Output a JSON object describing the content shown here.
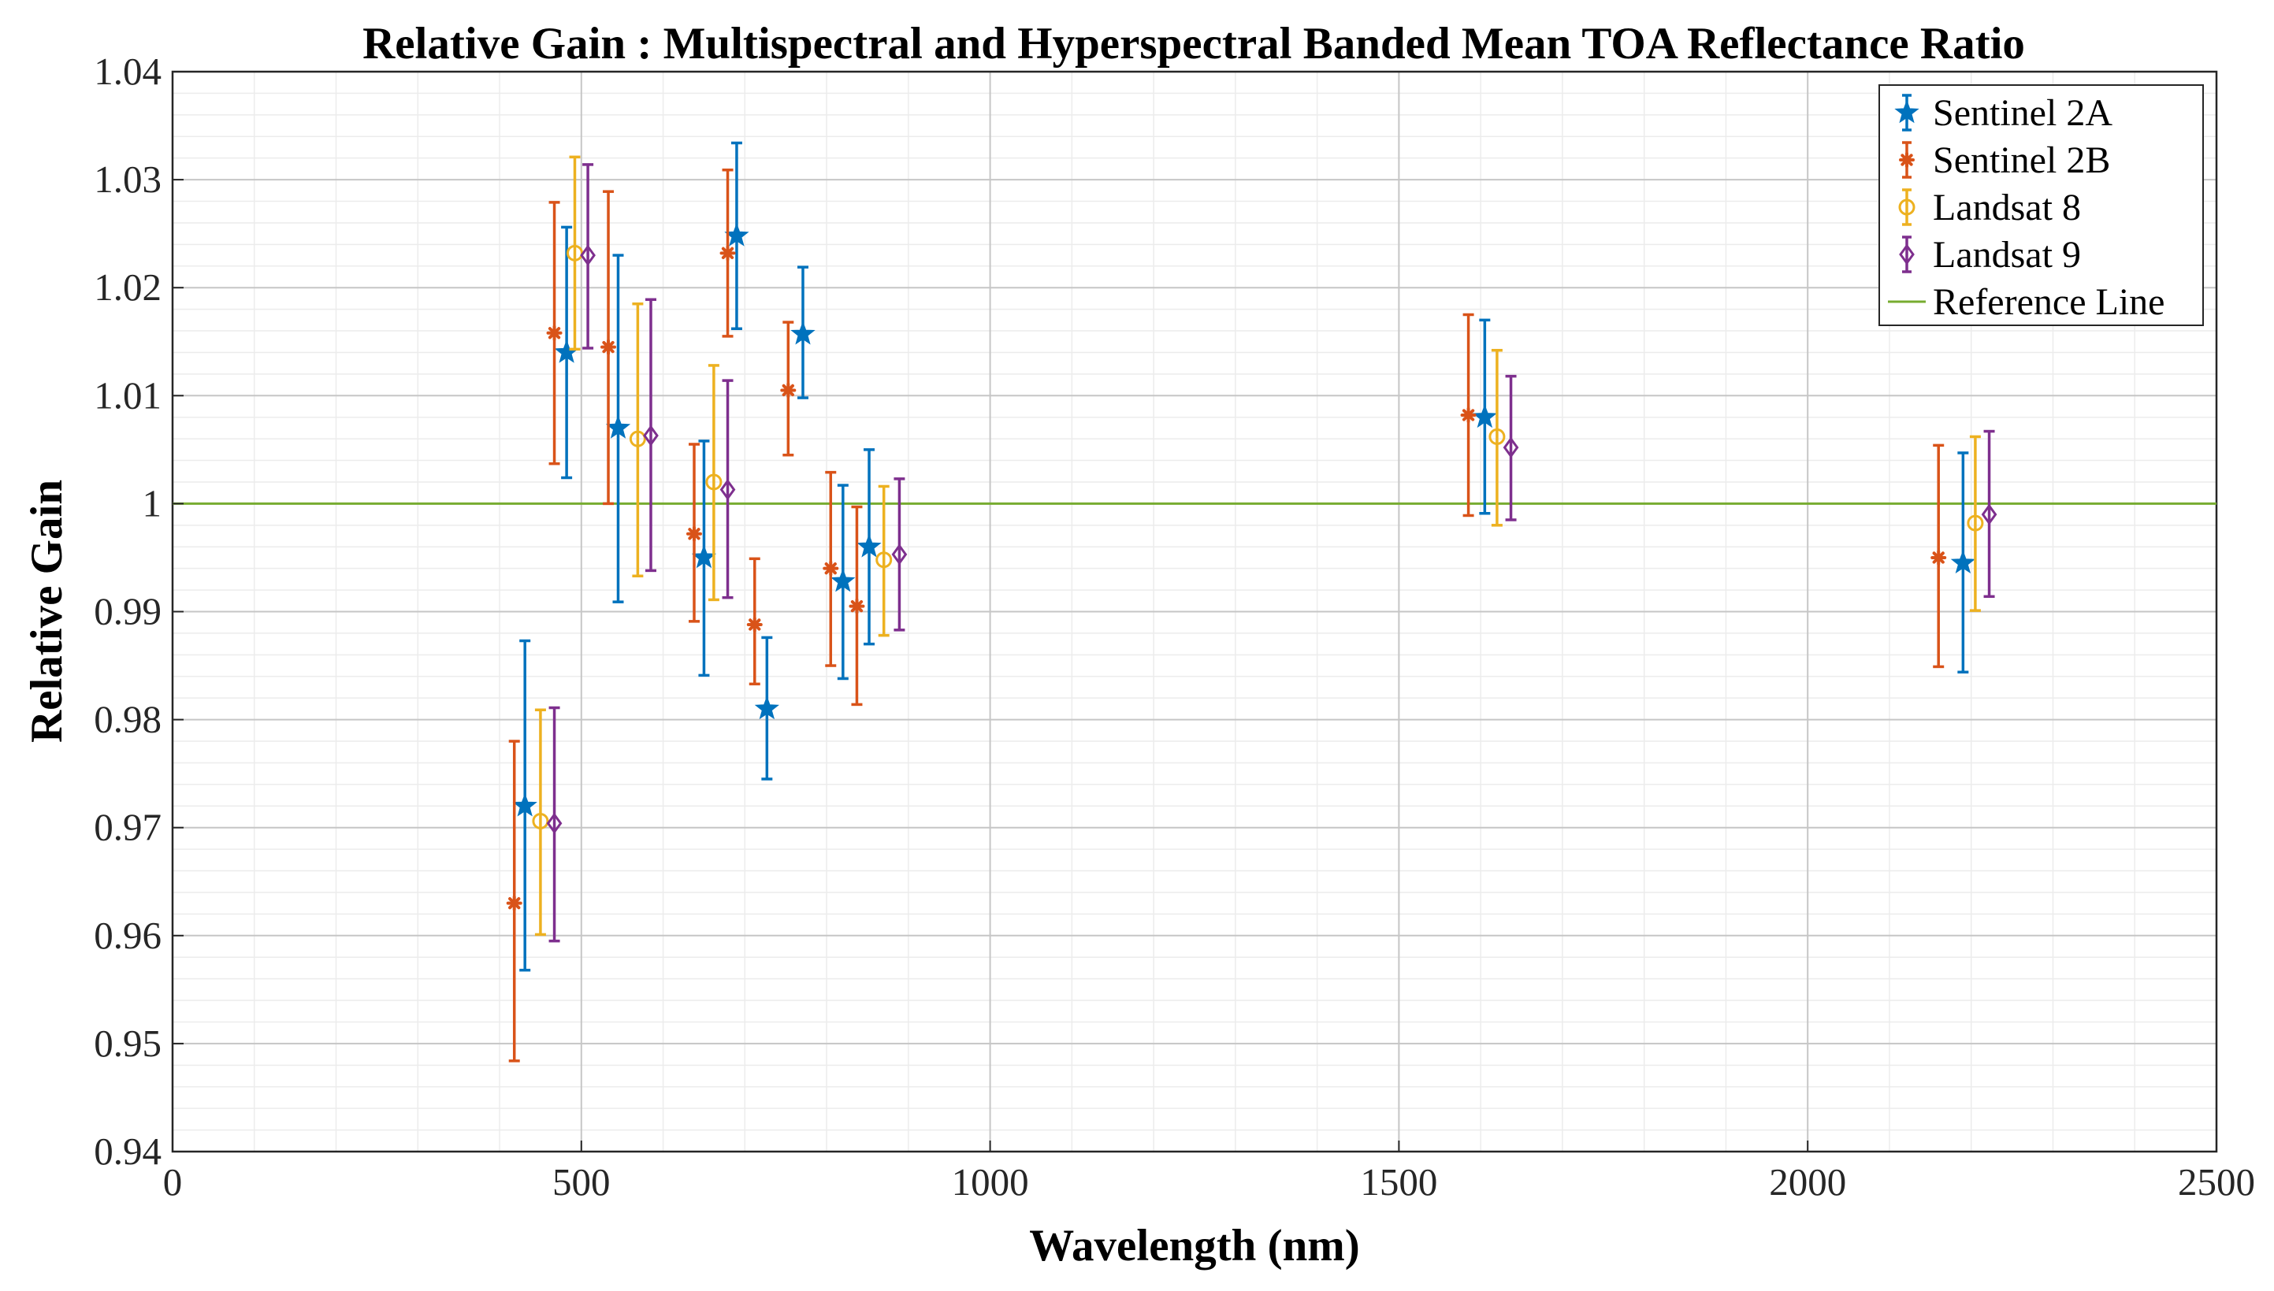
{
  "chart_data": {
    "type": "scatter",
    "title": "Relative Gain : Multispectral and Hyperspectral Banded Mean TOA Reflectance Ratio",
    "xlabel": "Wavelength (nm)",
    "ylabel": "Relative Gain",
    "xlim": [
      0,
      2500
    ],
    "ylim": [
      0.94,
      1.04
    ],
    "xticks": [
      0,
      500,
      1000,
      1500,
      2000,
      2500
    ],
    "xtick_labels": [
      "0",
      "500",
      "1000",
      "1500",
      "2000",
      "2500"
    ],
    "yticks": [
      0.94,
      0.95,
      0.96,
      0.97,
      0.98,
      0.99,
      1.0,
      1.01,
      1.02,
      1.03,
      1.04
    ],
    "ytick_labels": [
      "0.94",
      "0.95",
      "0.96",
      "0.97",
      "0.98",
      "0.99",
      "1",
      "1.01",
      "1.02",
      "1.03",
      "1.04"
    ],
    "grid": true,
    "legend_position": "top-right",
    "series": [
      {
        "name": "Sentinel 2A",
        "color": "#0072BD",
        "marker": "star",
        "x": [
          431,
          482,
          545,
          650,
          690,
          727,
          771,
          820,
          852,
          1605,
          2190
        ],
        "y": [
          0.972,
          1.014,
          1.007,
          0.995,
          1.0248,
          0.981,
          1.0157,
          0.9928,
          0.996,
          1.008,
          0.9945
        ],
        "lo": [
          0.9568,
          1.0024,
          0.9909,
          0.9841,
          1.0162,
          0.9745,
          1.0098,
          0.9838,
          0.987,
          0.9991,
          0.9844
        ],
        "hi": [
          0.9873,
          1.0256,
          1.023,
          1.0058,
          1.0334,
          0.9876,
          1.0219,
          1.0017,
          1.005,
          1.017,
          1.0047
        ]
      },
      {
        "name": "Sentinel 2B",
        "color": "#D95319",
        "marker": "asterisk",
        "x": [
          418,
          467,
          533,
          638,
          679,
          712,
          753,
          805,
          837,
          1585,
          2160
        ],
        "y": [
          0.963,
          1.0158,
          1.0145,
          0.9972,
          1.0232,
          0.9888,
          1.0105,
          0.994,
          0.9905,
          1.0082,
          0.995
        ],
        "lo": [
          0.9484,
          1.0037,
          1.0,
          0.9891,
          1.0155,
          0.9833,
          1.0045,
          0.985,
          0.9814,
          0.9989,
          0.9849
        ],
        "hi": [
          0.978,
          1.0279,
          1.0289,
          1.0055,
          1.0309,
          0.9949,
          1.0168,
          1.0029,
          0.9997,
          1.0175,
          1.0054
        ]
      },
      {
        "name": "Landsat 8",
        "color": "#EDB120",
        "marker": "circle",
        "x": [
          450,
          492,
          569,
          662,
          870,
          1620,
          2205
        ],
        "y": [
          0.9706,
          1.0232,
          1.006,
          1.002,
          0.9948,
          1.0062,
          0.9982
        ],
        "lo": [
          0.9601,
          1.0143,
          0.9933,
          0.9911,
          0.9878,
          0.998,
          0.9901
        ],
        "hi": [
          0.9809,
          1.0321,
          1.0185,
          1.0128,
          1.0016,
          1.0142,
          1.0062
        ]
      },
      {
        "name": "Landsat 9",
        "color": "#7E2F8E",
        "marker": "diamond",
        "x": [
          467,
          508,
          585,
          679,
          889,
          1637,
          2222
        ],
        "y": [
          0.9704,
          1.023,
          1.0063,
          1.0013,
          0.9953,
          1.0052,
          0.999
        ],
        "lo": [
          0.9595,
          1.0144,
          0.9938,
          0.9913,
          0.9883,
          0.9985,
          0.9914
        ],
        "hi": [
          0.9811,
          1.0314,
          1.0189,
          1.0114,
          1.0023,
          1.0118,
          1.0067
        ]
      }
    ],
    "reference_line": {
      "name": "Reference Line",
      "y": 1.0,
      "color": "#77AC30"
    }
  }
}
